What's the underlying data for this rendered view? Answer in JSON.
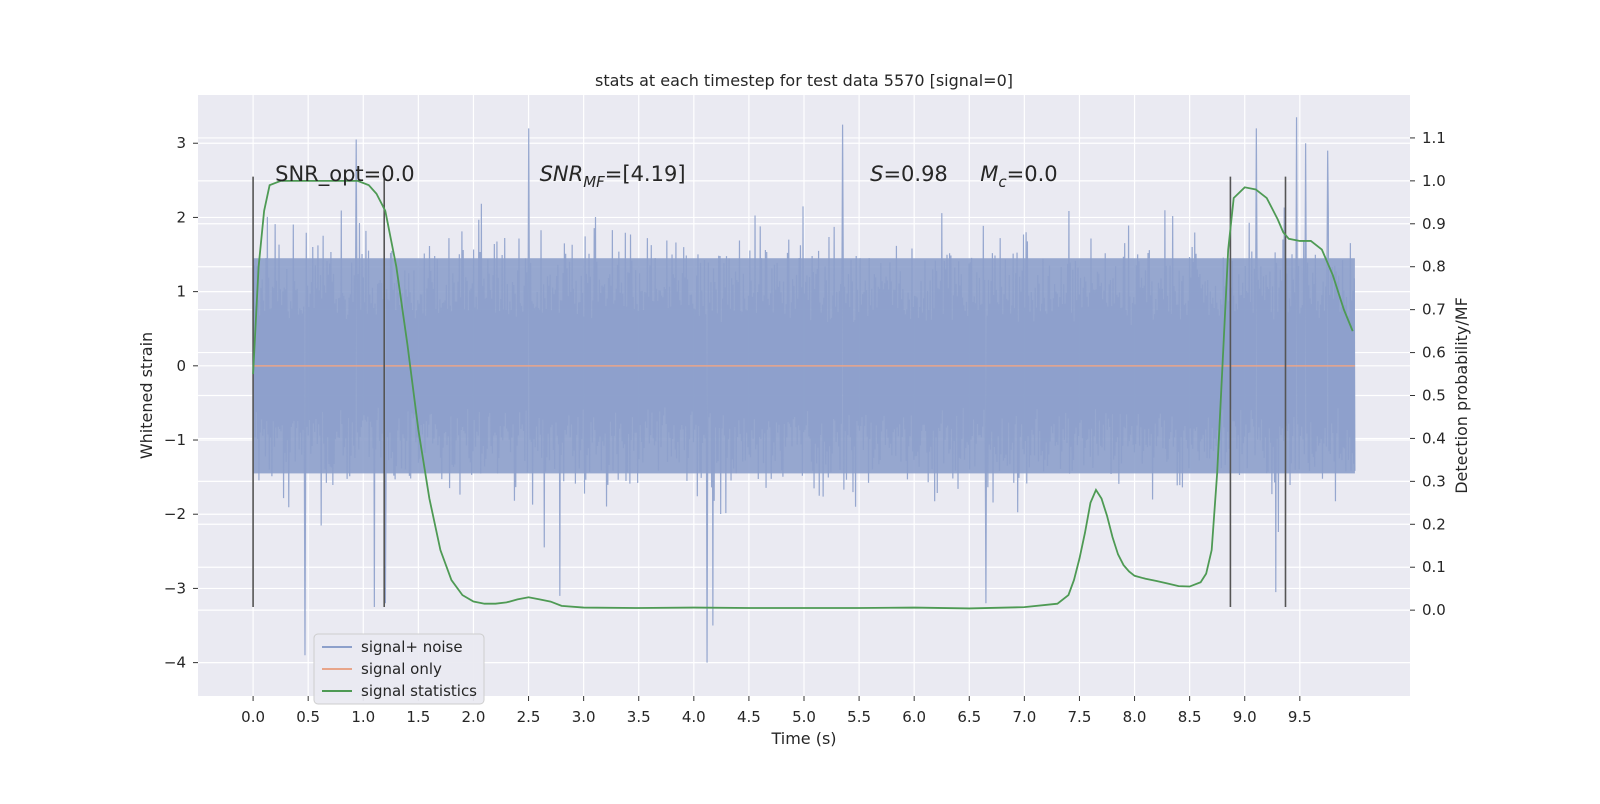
{
  "chart_data": {
    "type": "line",
    "title": "stats at each timestep for test data 5570 [signal=0]",
    "xlabel": "Time (s)",
    "ylabel_left": "Whitened strain",
    "ylabel_right": "Detection probability/MF",
    "xlim": [
      -0.5,
      10.5
    ],
    "ylim_left": [
      -4.45,
      3.65
    ],
    "ylim_right": [
      -0.2,
      1.2
    ],
    "xticks": [
      0.0,
      0.5,
      1.0,
      1.5,
      2.0,
      2.5,
      3.0,
      3.5,
      4.0,
      4.5,
      5.0,
      5.5,
      6.0,
      6.5,
      7.0,
      7.5,
      8.0,
      8.5,
      9.0,
      9.5
    ],
    "xtick_labels": [
      "0.0",
      "0.5",
      "1.0",
      "1.5",
      "2.0",
      "2.5",
      "3.0",
      "3.5",
      "4.0",
      "4.5",
      "5.0",
      "5.5",
      "6.0",
      "6.5",
      "7.0",
      "7.5",
      "8.0",
      "8.5",
      "9.0",
      "9.5"
    ],
    "yticks_left": [
      3,
      2,
      1,
      0,
      -1,
      -2,
      -3,
      -4
    ],
    "ytick_labels_left": [
      "3",
      "2",
      "1",
      "0",
      "−1",
      "−2",
      "−3",
      "−4"
    ],
    "yticks_right": [
      1.1,
      1.0,
      0.9,
      0.8,
      0.7,
      0.6,
      0.5,
      0.4,
      0.3,
      0.2,
      0.1,
      0.0
    ],
    "ytick_labels_right": [
      "1.1",
      "1.0",
      "0.9",
      "0.8",
      "0.7",
      "0.6",
      "0.5",
      "0.4",
      "0.3",
      "0.2",
      "0.1",
      "0.0"
    ],
    "grid": true,
    "legend_position": "lower-left",
    "annotations": [
      {
        "id": "snr-opt",
        "text": "SNR_opt=0.0",
        "x": 0.2,
        "y_right": 1.0
      },
      {
        "id": "snr-mf",
        "text": "SNR",
        "sub": "MF",
        "suffix": "=[4.19]",
        "italic": true,
        "x": 2.6,
        "y_right": 1.0
      },
      {
        "id": "s-stat",
        "text": "S",
        "suffix": "=0.98",
        "italic": true,
        "x": 5.6,
        "y_right": 1.0
      },
      {
        "id": "mc",
        "text": "M",
        "sub": "c",
        "suffix": "=0.0",
        "italic": true,
        "x": 6.6,
        "y_right": 1.0
      }
    ],
    "vertical_lines": [
      {
        "x": 0.0,
        "ymin": -3.25,
        "ymax": 2.55
      },
      {
        "x": 1.19,
        "ymin": -3.25,
        "ymax": 2.55
      },
      {
        "x": 8.87,
        "ymin": -3.25,
        "ymax": 2.55
      },
      {
        "x": 9.37,
        "ymin": -3.25,
        "ymax": 2.55
      }
    ],
    "series": [
      {
        "name": "signal+ noise",
        "axis": "left",
        "color": "#8da0cb",
        "kind": "noise",
        "x_range": [
          0.0,
          10.0
        ],
        "core_band": [
          -1.45,
          1.45
        ],
        "extremes": [
          {
            "x": 0.47,
            "y": -3.9
          },
          {
            "x": 0.93,
            "y": 3.05
          },
          {
            "x": 1.1,
            "y": -3.25
          },
          {
            "x": 1.2,
            "y": -3.2
          },
          {
            "x": 2.5,
            "y": 3.2
          },
          {
            "x": 2.78,
            "y": -3.1
          },
          {
            "x": 4.12,
            "y": -4.0
          },
          {
            "x": 4.17,
            "y": -3.5
          },
          {
            "x": 5.35,
            "y": 3.25
          },
          {
            "x": 6.65,
            "y": -3.2
          },
          {
            "x": 9.1,
            "y": 3.2
          },
          {
            "x": 9.28,
            "y": -3.05
          },
          {
            "x": 9.47,
            "y": 3.35
          },
          {
            "x": 9.55,
            "y": 3.0
          },
          {
            "x": 9.75,
            "y": 2.9
          }
        ]
      },
      {
        "name": "signal only",
        "axis": "left",
        "color": "#e8a58a",
        "x": [
          0.0,
          10.0
        ],
        "y": [
          0.0,
          0.0
        ]
      },
      {
        "name": "signal statistics",
        "axis": "right",
        "color": "#4e9a54",
        "x": [
          0.0,
          0.05,
          0.1,
          0.15,
          0.25,
          0.4,
          0.6,
          0.8,
          0.95,
          1.05,
          1.12,
          1.2,
          1.3,
          1.4,
          1.5,
          1.6,
          1.7,
          1.8,
          1.9,
          2.0,
          2.1,
          2.2,
          2.3,
          2.4,
          2.5,
          2.6,
          2.7,
          2.8,
          3.0,
          3.5,
          4.0,
          4.5,
          5.0,
          5.5,
          6.0,
          6.5,
          7.0,
          7.3,
          7.4,
          7.45,
          7.5,
          7.55,
          7.6,
          7.65,
          7.7,
          7.75,
          7.8,
          7.85,
          7.9,
          7.95,
          8.0,
          8.1,
          8.2,
          8.3,
          8.4,
          8.5,
          8.6,
          8.65,
          8.7,
          8.75,
          8.8,
          8.85,
          8.9,
          9.0,
          9.1,
          9.2,
          9.3,
          9.35,
          9.4,
          9.5,
          9.6,
          9.7,
          9.8,
          9.9,
          9.98
        ],
        "y": [
          0.55,
          0.8,
          0.93,
          0.99,
          1.0,
          1.0,
          1.0,
          1.0,
          1.0,
          0.99,
          0.97,
          0.93,
          0.8,
          0.62,
          0.42,
          0.26,
          0.14,
          0.07,
          0.035,
          0.02,
          0.015,
          0.015,
          0.018,
          0.025,
          0.03,
          0.025,
          0.02,
          0.01,
          0.006,
          0.005,
          0.006,
          0.005,
          0.005,
          0.005,
          0.006,
          0.004,
          0.007,
          0.015,
          0.035,
          0.07,
          0.12,
          0.18,
          0.25,
          0.28,
          0.26,
          0.22,
          0.17,
          0.13,
          0.105,
          0.09,
          0.08,
          0.073,
          0.068,
          0.062,
          0.056,
          0.055,
          0.065,
          0.085,
          0.14,
          0.32,
          0.58,
          0.84,
          0.96,
          0.985,
          0.98,
          0.96,
          0.91,
          0.88,
          0.865,
          0.86,
          0.86,
          0.84,
          0.78,
          0.7,
          0.65
        ]
      }
    ]
  }
}
